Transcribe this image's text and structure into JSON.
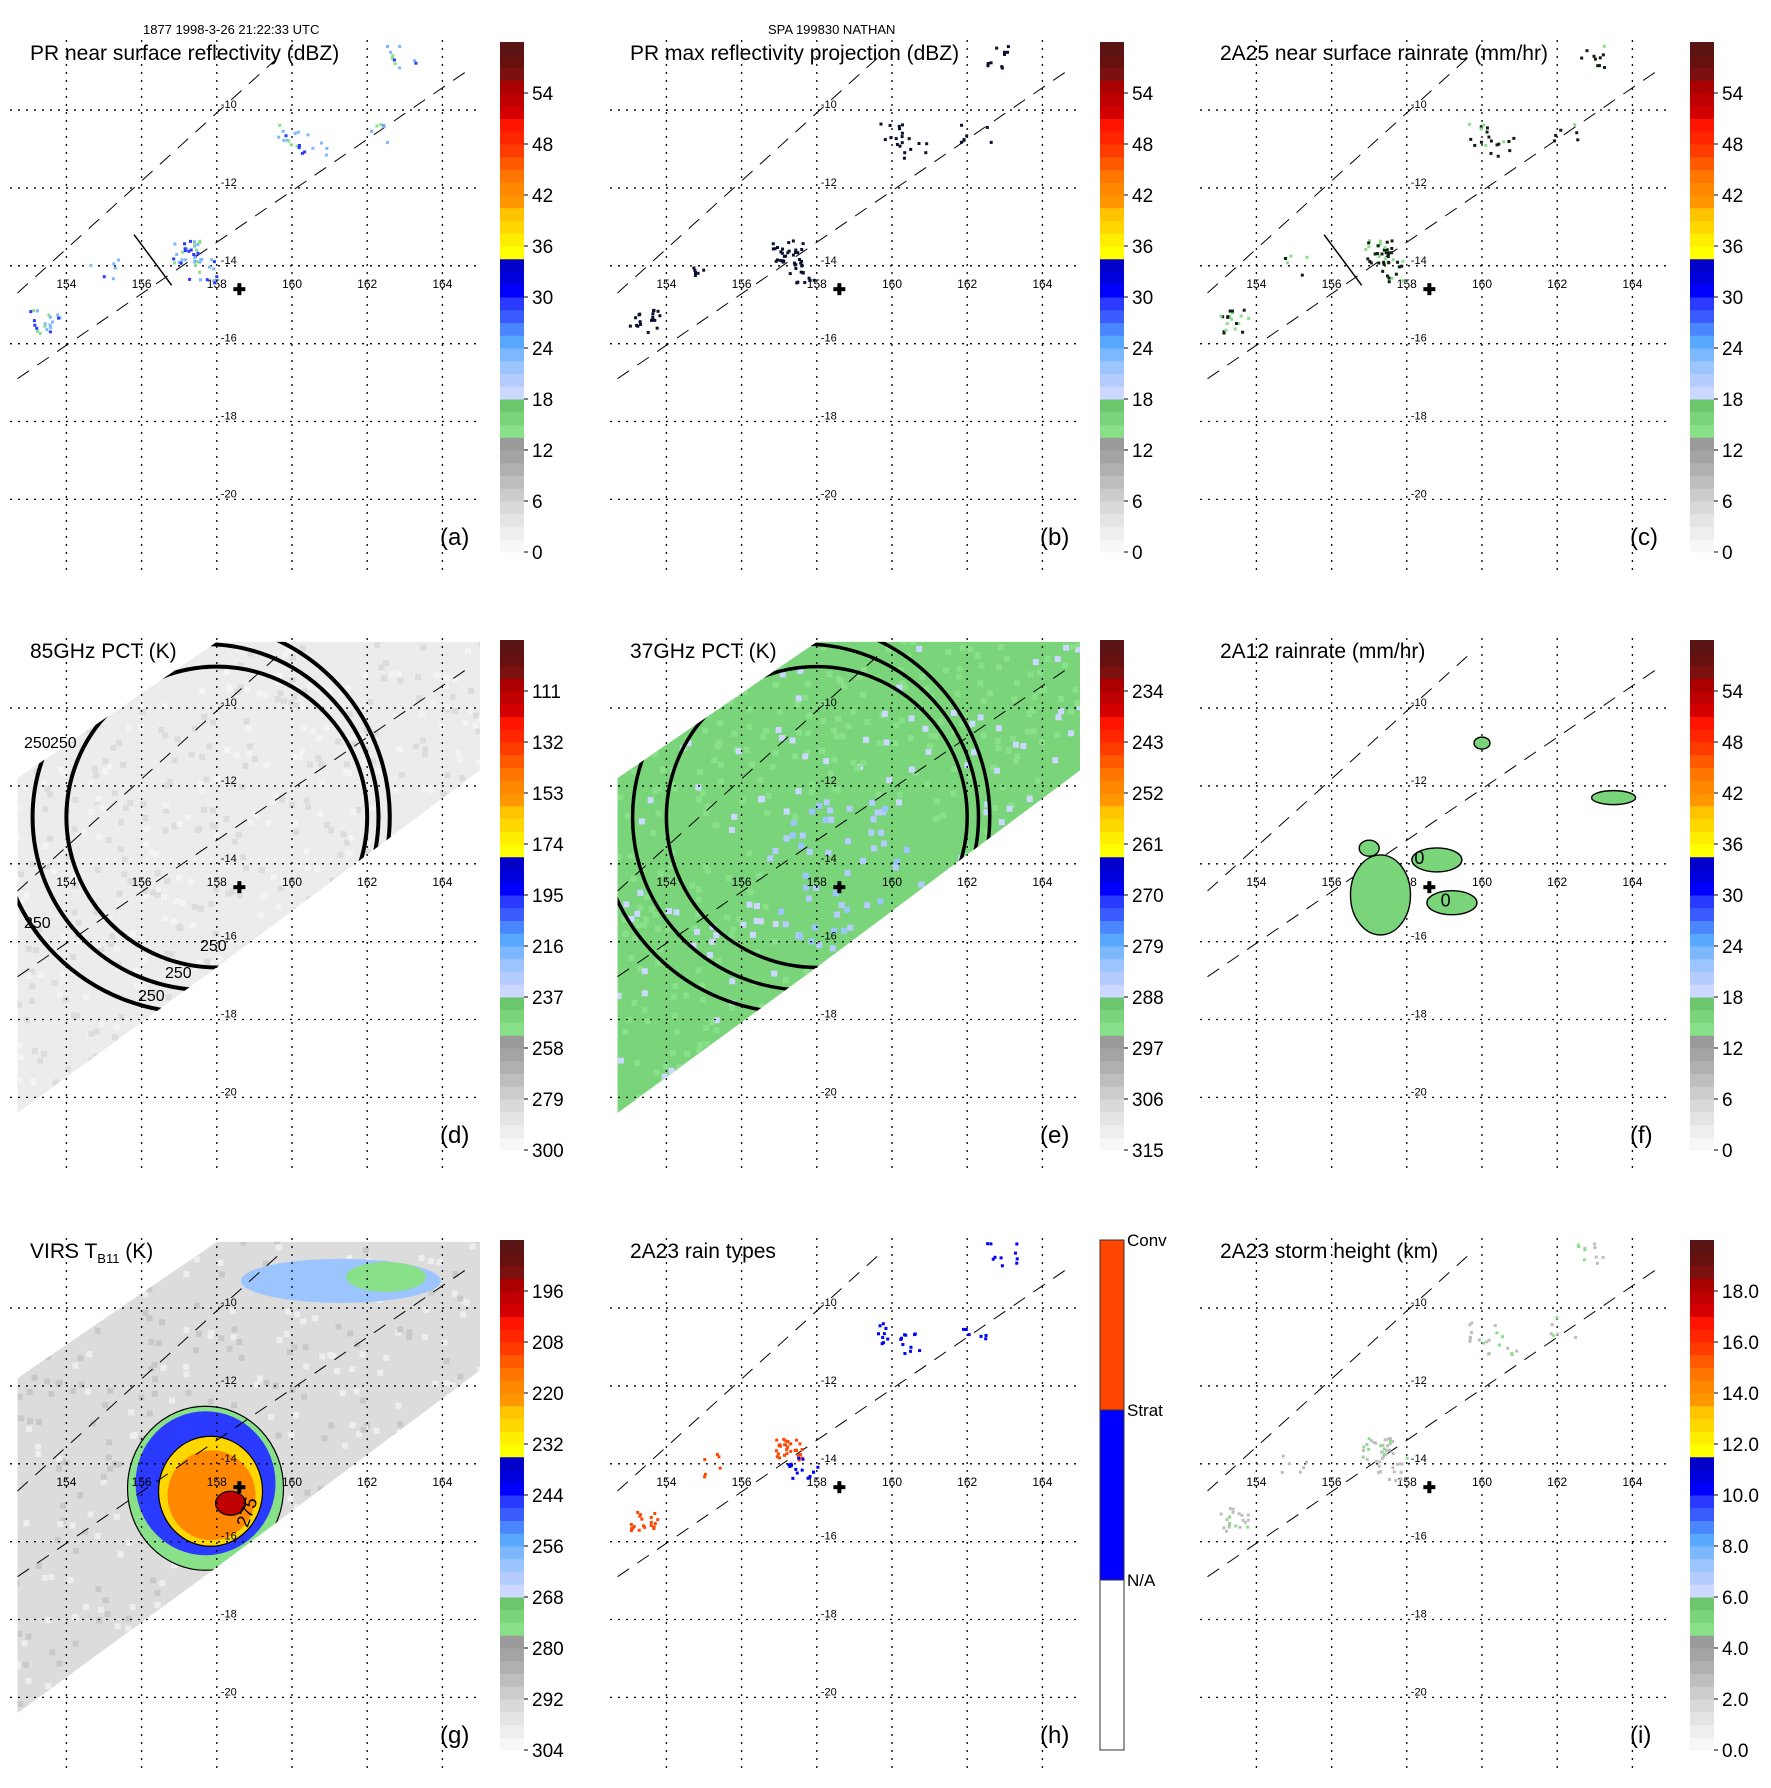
{
  "header": {
    "left_title": "1877 1998-3-26 21:22:33 UTC",
    "center_title": "SPA 199830 NATHAN"
  },
  "map": {
    "lon_ticks": [
      154,
      156,
      158,
      160,
      162,
      164
    ],
    "lat_ticks": [
      -10,
      -12,
      -14,
      -16,
      -18,
      -20
    ],
    "lon_tick_labels": [
      "154",
      "156",
      "158",
      "160",
      "162",
      "164"
    ],
    "lat_tick_labels": [
      "-10",
      "-12",
      "-14",
      "-16",
      "-18",
      "-20"
    ],
    "lon_range": [
      152.7,
      165.0
    ],
    "lat_range": [
      -21.2,
      -8.3
    ],
    "storm_center": {
      "lon": 158.6,
      "lat": -14.6,
      "marker": "plus-icon"
    },
    "pr_swath_edges": [
      {
        "name": "swath-left",
        "points": [
          [
            152.7,
            -14.7
          ],
          [
            159.8,
            -8.5
          ]
        ]
      },
      {
        "name": "swath-right",
        "points": [
          [
            152.7,
            -16.9
          ],
          [
            164.8,
            -8.9
          ]
        ]
      }
    ]
  },
  "chart_data": [
    {
      "id": "a",
      "type": "heatmap",
      "title": "PR near surface reflectivity (dBZ)",
      "panel_label": "(a)",
      "xlabel": "",
      "ylabel": "",
      "colorbar": {
        "ticks": [
          0,
          6,
          12,
          18,
          24,
          30,
          36,
          42,
          48,
          54
        ],
        "range": [
          0,
          60
        ],
        "units": "dBZ"
      },
      "cross_section_line": [
        [
          155.8,
          -13.2
        ],
        [
          156.8,
          -14.5
        ]
      ],
      "features": [
        {
          "desc": "rain patches along swath",
          "lon": 157.2,
          "lat": -13.8,
          "value": 28
        },
        {
          "desc": "rain patches near -10.5",
          "lon": 159.9,
          "lat": -10.6,
          "value": 26
        },
        {
          "desc": "rain patch far west",
          "lon": 153.2,
          "lat": -15.3,
          "value": 24
        }
      ]
    },
    {
      "id": "b",
      "type": "heatmap",
      "title": "PR max reflectivity projection (dBZ)",
      "panel_label": "(b)",
      "colorbar": {
        "ticks": [
          0,
          6,
          12,
          18,
          24,
          30,
          36,
          42,
          48,
          54
        ],
        "range": [
          0,
          60
        ],
        "units": "dBZ"
      },
      "features": [
        {
          "desc": "echo cells",
          "lon": 157.3,
          "lat": -13.6,
          "value": 30
        },
        {
          "desc": "echo cells",
          "lon": 160.0,
          "lat": -10.6,
          "value": 30
        }
      ]
    },
    {
      "id": "c",
      "type": "heatmap",
      "title": "2A25 near surface rainrate (mm/hr)",
      "panel_label": "(c)",
      "colorbar": {
        "ticks": [
          0,
          6,
          12,
          18,
          24,
          30,
          36,
          42,
          48,
          54
        ],
        "range": [
          0,
          60
        ],
        "units": "mm/hr"
      },
      "cross_section_line": [
        [
          155.8,
          -13.2
        ],
        [
          156.8,
          -14.5
        ]
      ],
      "features": [
        {
          "desc": "light rain",
          "lon": 157.3,
          "lat": -13.6,
          "value": 4
        },
        {
          "desc": "light rain",
          "lon": 160.0,
          "lat": -10.6,
          "value": 4
        }
      ]
    },
    {
      "id": "d",
      "type": "heatmap",
      "title": "85GHz PCT (K)",
      "panel_label": "(d)",
      "colorbar": {
        "ticks": [
          300,
          279,
          258,
          237,
          216,
          195,
          174,
          153,
          132,
          111
        ],
        "range": [
          300,
          90
        ],
        "units": "K",
        "reversed": true
      },
      "contour_labels": [
        "250",
        "250",
        "250",
        "250",
        "250",
        "250"
      ],
      "contours": [
        {
          "level": 250,
          "center": [
            158.0,
            -12.8
          ],
          "radius_deg": 4.0
        },
        {
          "level": 250,
          "center": [
            157.7,
            -12.8
          ],
          "radius_deg": 4.6
        },
        {
          "level": 250,
          "center": [
            157.4,
            -12.8
          ],
          "radius_deg": 5.2
        }
      ]
    },
    {
      "id": "e",
      "type": "heatmap",
      "title": "37GHz PCT (K)",
      "panel_label": "(e)",
      "colorbar": {
        "ticks": [
          315,
          306,
          297,
          288,
          279,
          270,
          261,
          252,
          243,
          234
        ],
        "range": [
          315,
          225
        ],
        "units": "K",
        "reversed": true
      },
      "contours": [
        {
          "level": 288,
          "center": [
            158.0,
            -12.8
          ],
          "radius_deg": 4.0
        },
        {
          "level": 288,
          "center": [
            157.7,
            -12.8
          ],
          "radius_deg": 4.6
        },
        {
          "level": 288,
          "center": [
            157.4,
            -12.8
          ],
          "radius_deg": 5.2
        }
      ],
      "background_value": 290,
      "features": [
        {
          "desc": "cooler PCT near center",
          "lon": 159.0,
          "lat": -14.5,
          "value": 280
        }
      ]
    },
    {
      "id": "f",
      "type": "heatmap",
      "title": "2A12 rainrate (mm/hr)",
      "panel_label": "(f)",
      "colorbar": {
        "ticks": [
          0,
          6,
          12,
          18,
          24,
          30,
          36,
          42,
          48,
          54
        ],
        "range": [
          0,
          60
        ],
        "units": "mm/hr"
      },
      "contour_labels": [
        "0",
        "0"
      ],
      "features": [
        {
          "desc": "rain band west of center",
          "lon": 157.4,
          "lat": -14.8,
          "value": 3
        },
        {
          "desc": "rain band north of center",
          "lon": 158.7,
          "lat": -13.8,
          "value": 3
        },
        {
          "desc": "rain east",
          "lon": 163.5,
          "lat": -12.2,
          "value": 3
        }
      ]
    },
    {
      "id": "g",
      "type": "heatmap",
      "title": "VIRS T",
      "title_subscript": "B11",
      "title_suffix": " (K)",
      "panel_label": "(g)",
      "colorbar": {
        "ticks": [
          304,
          292,
          280,
          268,
          256,
          244,
          232,
          220,
          208,
          196
        ],
        "range": [
          304,
          184
        ],
        "units": "K",
        "reversed": true
      },
      "contour_labels": [
        "275"
      ],
      "features": [
        {
          "desc": "cold cloud top core",
          "lon": 157.8,
          "lat": -14.6,
          "value": 215
        },
        {
          "desc": "coldest tops",
          "lon": 158.4,
          "lat": -14.8,
          "value": 200
        },
        {
          "desc": "cloud shield",
          "lon": 157.6,
          "lat": -14.4,
          "value": 245
        }
      ]
    },
    {
      "id": "h",
      "type": "heatmap",
      "title": "2A23 rain types",
      "panel_label": "(h)",
      "colorbar": {
        "categories": [
          "N/A",
          "Strat",
          "Conv"
        ],
        "colors": [
          "#ffffff",
          "#0000ff",
          "#ff4500"
        ]
      },
      "features": [
        {
          "desc": "convective",
          "lon": 156.8,
          "lat": -13.2,
          "category": "Conv"
        },
        {
          "desc": "stratiform",
          "lon": 157.2,
          "lat": -13.8,
          "category": "Strat"
        },
        {
          "desc": "stratiform",
          "lon": 160.0,
          "lat": -10.6,
          "category": "Strat"
        }
      ]
    },
    {
      "id": "i",
      "type": "heatmap",
      "title": "2A23 storm height (km)",
      "panel_label": "(i)",
      "colorbar": {
        "ticks": [
          0.0,
          2.0,
          4.0,
          6.0,
          8.0,
          10.0,
          12.0,
          14.0,
          16.0,
          18.0
        ],
        "tick_labels": [
          "0.0",
          "2.0",
          "4.0",
          "6.0",
          "8.0",
          "10.0",
          "12.0",
          "14.0",
          "16.0",
          "18.0"
        ],
        "range": [
          0,
          20
        ],
        "units": "km"
      },
      "features": [
        {
          "desc": "low storm tops",
          "lon": 157.0,
          "lat": -13.6,
          "value": 4
        },
        {
          "desc": "low storm tops",
          "lon": 160.0,
          "lat": -10.6,
          "value": 4
        }
      ]
    }
  ],
  "palette": {
    "ramp": [
      "#f7f7f7",
      "#eeeeee",
      "#e4e4e4",
      "#d9d9d9",
      "#cccccc",
      "#bebebe",
      "#b0b0b0",
      "#a4a4a4",
      "#9a9a9a",
      "#88e088",
      "#7ad47a",
      "#6cc66c",
      "#ccd8ff",
      "#b4ccff",
      "#9cc4ff",
      "#7db8ff",
      "#58a8ff",
      "#4a86ff",
      "#3a5cff",
      "#2a3aff",
      "#0000ff",
      "#0000dd",
      "#0000c8",
      "#ffff00",
      "#ffee00",
      "#ffd700",
      "#ffc400",
      "#ff9600",
      "#ff8800",
      "#ff7700",
      "#ff5a00",
      "#ff3c00",
      "#ff2600",
      "#ff1400",
      "#d20000",
      "#be0000",
      "#aa0000",
      "#7a1010",
      "#661010",
      "#5a1414"
    ]
  }
}
